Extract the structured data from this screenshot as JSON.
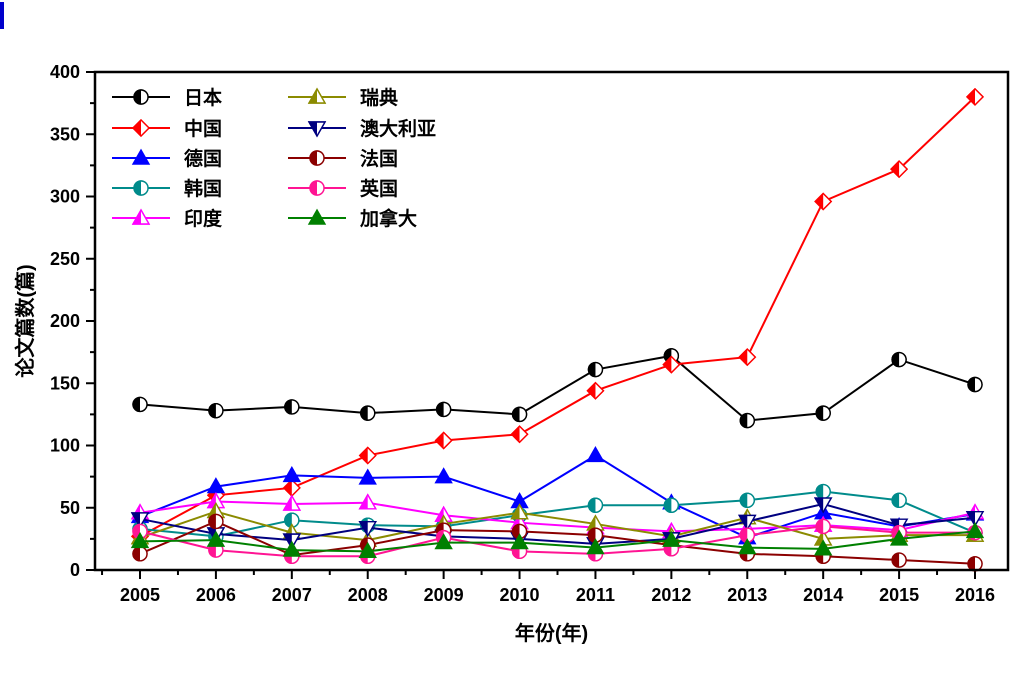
{
  "page": {
    "background": "#FFFFFF"
  },
  "stray_mark": {
    "color": "#0000CC"
  },
  "chart_data": {
    "type": "line",
    "title": "",
    "xlabel": "年份(年)",
    "ylabel": "论文篇数(篇)",
    "ylim": [
      0,
      400
    ],
    "ytick_step": 50,
    "ytick_labels": [
      "0",
      "50",
      "100",
      "150",
      "200",
      "250",
      "300",
      "350",
      "400"
    ],
    "grid": false,
    "legend_position": "top-left-inside, 2 columns, 5 rows, column-major",
    "categories": [
      "2005",
      "2006",
      "2007",
      "2008",
      "2009",
      "2010",
      "2011",
      "2012",
      "2013",
      "2014",
      "2015",
      "2016"
    ],
    "series": [
      {
        "id": "japan",
        "label": "日本",
        "color": "#000000",
        "marker": "circle",
        "half_open": true,
        "values": [
          133,
          128,
          131,
          126,
          129,
          125,
          161,
          172,
          120,
          126,
          169,
          149
        ]
      },
      {
        "id": "china",
        "label": "中国",
        "color": "#FF0000",
        "marker": "diamond",
        "half_open": true,
        "values": [
          27,
          60,
          66,
          92,
          104,
          109,
          144,
          165,
          171,
          296,
          322,
          380
        ]
      },
      {
        "id": "germany",
        "label": "德国",
        "color": "#0000FF",
        "marker": "triangle-up",
        "half_open": false,
        "values": [
          43,
          67,
          76,
          74,
          75,
          55,
          92,
          54,
          26,
          46,
          35,
          45
        ]
      },
      {
        "id": "korea",
        "label": "韩国",
        "color": "#008B8B",
        "marker": "circle",
        "half_open": true,
        "values": [
          33,
          27,
          40,
          36,
          35,
          44,
          52,
          52,
          56,
          63,
          56,
          30
        ]
      },
      {
        "id": "india",
        "label": "印度",
        "color": "#FF00FF",
        "marker": "triangle-up",
        "half_open": true,
        "values": [
          46,
          55,
          53,
          54,
          44,
          38,
          34,
          31,
          33,
          36,
          32,
          46
        ]
      },
      {
        "id": "sweden",
        "label": "瑞典",
        "color": "#8B8B00",
        "marker": "triangle-up",
        "half_open": true,
        "values": [
          26,
          47,
          30,
          24,
          37,
          46,
          37,
          27,
          42,
          25,
          28,
          28
        ]
      },
      {
        "id": "australia",
        "label": "澳大利亚",
        "color": "#000080",
        "marker": "triangle-down",
        "half_open": true,
        "values": [
          41,
          29,
          24,
          34,
          27,
          25,
          21,
          25,
          39,
          53,
          36,
          42
        ]
      },
      {
        "id": "france",
        "label": "法国",
        "color": "#8B0000",
        "marker": "circle",
        "half_open": true,
        "values": [
          13,
          39,
          12,
          20,
          32,
          31,
          28,
          20,
          13,
          11,
          8,
          5
        ]
      },
      {
        "id": "uk",
        "label": "英国",
        "color": "#FF1493",
        "marker": "circle",
        "half_open": true,
        "values": [
          31,
          16,
          11,
          11,
          26,
          15,
          13,
          17,
          28,
          35,
          30,
          30
        ]
      },
      {
        "id": "canada",
        "label": "加拿大",
        "color": "#008000",
        "marker": "triangle-up",
        "half_open": false,
        "values": [
          23,
          24,
          16,
          15,
          22,
          22,
          18,
          24,
          18,
          17,
          25,
          31
        ]
      }
    ]
  }
}
